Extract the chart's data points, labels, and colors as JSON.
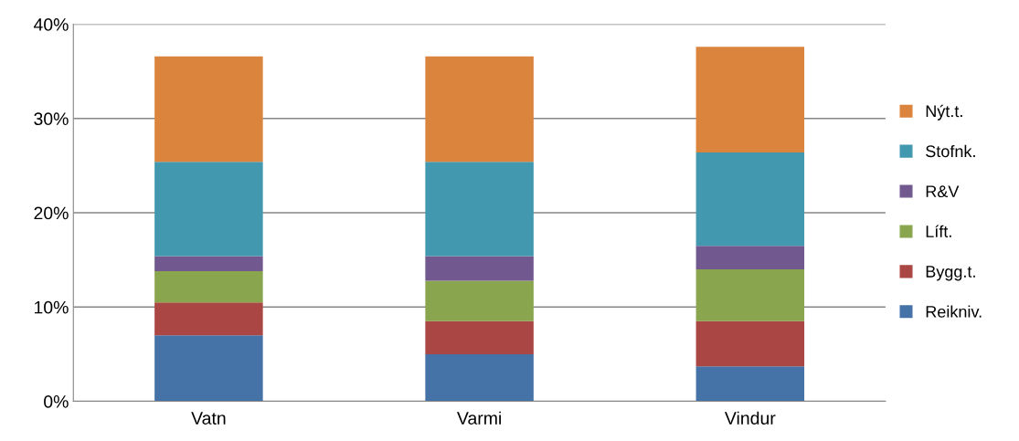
{
  "chart_data": {
    "type": "bar",
    "stacked": true,
    "categories": [
      "Vatn",
      "Varmi",
      "Vindur"
    ],
    "series": [
      {
        "name": "Reikniv.",
        "color": "#4572a7",
        "values": [
          7.0,
          5.0,
          3.7
        ]
      },
      {
        "name": "Bygg.t.",
        "color": "#aa4643",
        "values": [
          3.5,
          3.5,
          4.8
        ]
      },
      {
        "name": "Líft.",
        "color": "#89a54e",
        "values": [
          3.3,
          4.3,
          5.5
        ]
      },
      {
        "name": "R&V",
        "color": "#71588f",
        "values": [
          1.6,
          2.6,
          2.5
        ]
      },
      {
        "name": "Stofnk.",
        "color": "#4198af",
        "values": [
          10.0,
          10.0,
          9.9
        ]
      },
      {
        "name": "Nýt.t.",
        "color": "#db843d",
        "values": [
          11.2,
          11.2,
          11.2
        ]
      }
    ],
    "ylim": [
      0,
      40
    ],
    "yticks": [
      {
        "value": 0,
        "label": "0%"
      },
      {
        "value": 10,
        "label": "10%"
      },
      {
        "value": 20,
        "label": "20%"
      },
      {
        "value": 30,
        "label": "30%"
      },
      {
        "value": 40,
        "label": "40%"
      }
    ],
    "grid": "y",
    "legend": "right"
  }
}
